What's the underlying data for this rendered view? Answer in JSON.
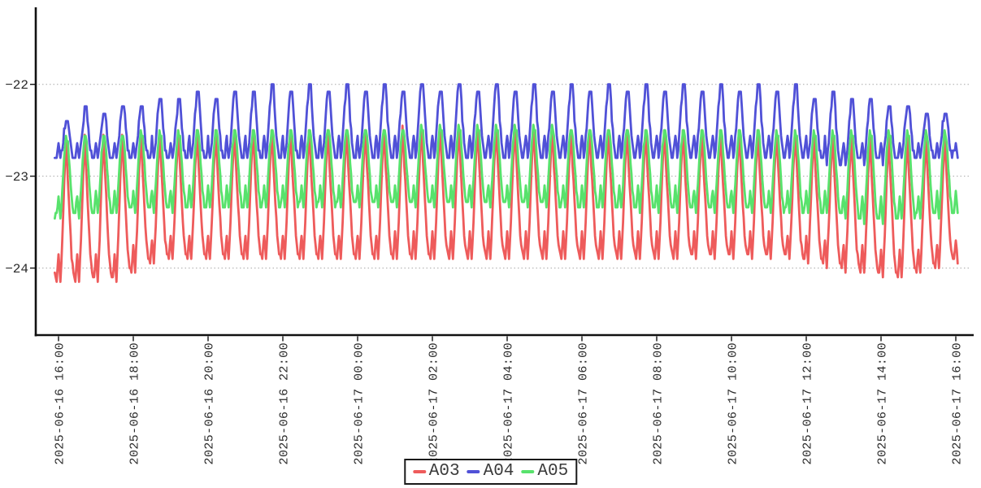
{
  "chart_data": {
    "type": "line",
    "title": "",
    "xlabel": "",
    "ylabel": "",
    "grid": "dotted-horizontal",
    "legend": {
      "position": "bottom-center",
      "entries": [
        "A03",
        "A04",
        "A05"
      ]
    },
    "x_axis": {
      "start": "2025-06-16 16:00",
      "end": "2025-06-17 16:00",
      "tick_interval_minutes": 120,
      "tick_labels": [
        "2025-06-16 16:00",
        "2025-06-16 18:00",
        "2025-06-16 20:00",
        "2025-06-16 22:00",
        "2025-06-17 00:00",
        "2025-06-17 02:00",
        "2025-06-17 04:00",
        "2025-06-17 06:00",
        "2025-06-17 08:00",
        "2025-06-17 10:00",
        "2025-06-17 12:00",
        "2025-06-17 14:00",
        "2025-06-17 16:00"
      ]
    },
    "y_axis": {
      "ticks": [
        -22,
        -23,
        -24
      ],
      "tick_labels": [
        "−22",
        "−23",
        "−24"
      ],
      "ylim": [
        -24.73,
        -21.17
      ]
    },
    "sampling": {
      "period_minutes": 30,
      "sample_interval_min": 1.5,
      "start_min": -6,
      "phase_offset_samples": 18,
      "n_points": 967,
      "samples_per_cycle": 20
    },
    "series": [
      {
        "name": "A03",
        "color": "#ee5b5b",
        "quantize": 0.05,
        "template": [
          0.02,
          0.2,
          0.0,
          0.3,
          0.68,
          1.0,
          0.72,
          0.45,
          0.18,
          0.06
        ],
        "peak_envelope": [
          [
            0,
            -22.62
          ],
          [
            3,
            -22.56
          ],
          [
            10,
            -22.5
          ],
          [
            24,
            -22.46
          ],
          [
            40,
            -22.52
          ],
          [
            49,
            -22.58
          ]
        ],
        "trough_envelope": [
          [
            0,
            -24.17
          ],
          [
            4.5,
            -24.15
          ],
          [
            5.5,
            -24.0
          ],
          [
            7,
            -23.92
          ],
          [
            40,
            -23.9
          ],
          [
            44,
            -24.06
          ],
          [
            46,
            -24.13
          ],
          [
            47.5,
            -24.06
          ],
          [
            49,
            -23.95
          ]
        ]
      },
      {
        "name": "A04",
        "color": "#5051d7",
        "quantize": 0.08,
        "alt_peak_drop": 0.06,
        "template": [
          0.06,
          0.35,
          0.0,
          0.28,
          0.7,
          1.0,
          1.0,
          0.55,
          0.18,
          0.04
        ],
        "peak_envelope": [
          [
            0,
            -22.36
          ],
          [
            1,
            -22.33
          ],
          [
            6,
            -22.16
          ],
          [
            12,
            -22.04
          ],
          [
            20,
            -21.99
          ],
          [
            40,
            -22.02
          ],
          [
            43,
            -22.12
          ],
          [
            46,
            -22.18
          ],
          [
            48,
            -22.28
          ],
          [
            49,
            -22.3
          ]
        ],
        "trough_envelope": [
          [
            0,
            -22.82
          ],
          [
            41,
            -22.8
          ],
          [
            43,
            -22.88
          ],
          [
            45,
            -22.85
          ],
          [
            49,
            -22.78
          ]
        ]
      },
      {
        "name": "A05",
        "color": "#58e26c",
        "quantize": 0.06,
        "template": [
          0.05,
          0.28,
          0.0,
          0.33,
          0.75,
          1.0,
          0.93,
          0.58,
          0.24,
          0.04
        ],
        "peak_envelope": [
          [
            0,
            -22.6
          ],
          [
            3,
            -22.55
          ],
          [
            8,
            -22.5
          ],
          [
            24,
            -22.46
          ],
          [
            40,
            -22.5
          ],
          [
            49,
            -22.53
          ]
        ],
        "trough_envelope": [
          [
            0,
            -23.6
          ],
          [
            1,
            -23.46
          ],
          [
            8,
            -23.36
          ],
          [
            24,
            -23.33
          ],
          [
            42,
            -23.42
          ],
          [
            45,
            -23.52
          ],
          [
            49,
            -23.42
          ]
        ]
      }
    ]
  },
  "legend": {
    "a03_label": "A03",
    "a04_label": "A04",
    "a05_label": "A05"
  },
  "colors": {
    "axis": "#111111",
    "gridline": "#a8a8a8",
    "tick_text": "#2b2b2b",
    "background": "#ffffff"
  }
}
